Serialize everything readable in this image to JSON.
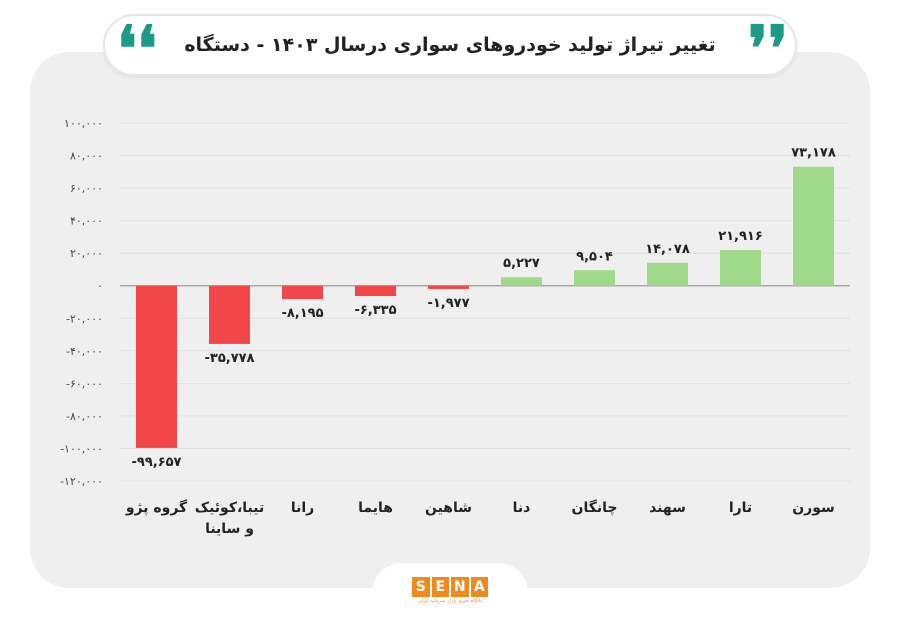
{
  "header": {
    "title": "تغییر تیراژ تولید خودروهای سواری درسال ۱۴۰۳ - دستگاه",
    "quote_left": "❛❛",
    "quote_right": "❜❜"
  },
  "logo": {
    "letters": [
      "S",
      "E",
      "N",
      "A"
    ],
    "subtitle": "پایگاه خبری بازار سرمایه ایران"
  },
  "colors": {
    "positive": "#a1d98a",
    "negative": "#f2474a",
    "accent": "#1b9a86"
  },
  "chart_data": {
    "type": "bar",
    "categories": [
      "گروه پژو",
      "تیبا،کوئیک و ساینا",
      "رانا",
      "هایما",
      "شاهین",
      "دنا",
      "چانگان",
      "سهند",
      "تارا",
      "سورن"
    ],
    "category_lines": [
      [
        "گروه پژو"
      ],
      [
        "تیبا،کوئیک",
        "و ساینا"
      ],
      [
        "رانا"
      ],
      [
        "هایما"
      ],
      [
        "شاهین"
      ],
      [
        "دنا"
      ],
      [
        "چانگان"
      ],
      [
        "سهند"
      ],
      [
        "تارا"
      ],
      [
        "سورن"
      ]
    ],
    "values": [
      -99657,
      -35778,
      -8195,
      -6335,
      -1977,
      5227,
      9504,
      14078,
      21916,
      73178
    ],
    "value_labels": [
      "-۹۹,۶۵۷",
      "-۳۵,۷۷۸",
      "-۸,۱۹۵",
      "-۶,۳۳۵",
      "-۱,۹۷۷",
      "۵,۲۲۷",
      "۹,۵۰۴",
      "۱۴,۰۷۸",
      "۲۱,۹۱۶",
      "۷۳,۱۷۸"
    ],
    "yticks": [
      100000,
      80000,
      60000,
      40000,
      20000,
      0,
      -20000,
      -40000,
      -60000,
      -80000,
      -100000,
      -120000
    ],
    "ytick_labels": [
      "۱۰۰,۰۰۰",
      "۸۰,۰۰۰",
      "۶۰,۰۰۰",
      "۴۰,۰۰۰",
      "۲۰,۰۰۰",
      "۰",
      "-۲۰,۰۰۰",
      "-۴۰,۰۰۰",
      "-۶۰,۰۰۰",
      "-۸۰,۰۰۰",
      "-۱۰۰,۰۰۰",
      "-۱۲۰,۰۰۰"
    ],
    "ylim": [
      -120000,
      100000
    ],
    "grid": true,
    "xlabel": "",
    "ylabel": ""
  }
}
